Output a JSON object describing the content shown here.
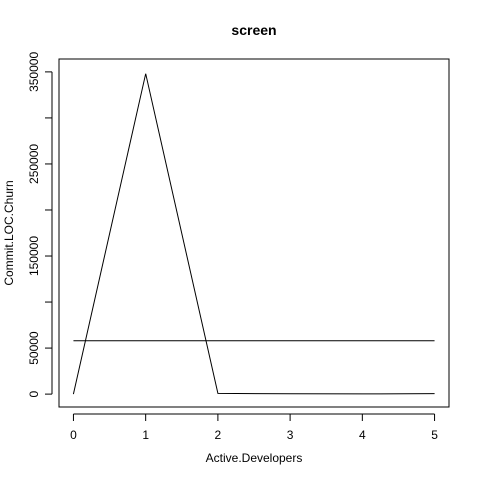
{
  "chart_data": {
    "type": "line",
    "title": "screen",
    "xlabel": "Active.Developers",
    "ylabel": "Commit.LOC.Churn",
    "x": [
      0,
      1,
      2,
      3,
      4,
      5
    ],
    "series": [
      {
        "values": [
          0,
          348000,
          800,
          300,
          200,
          600
        ]
      }
    ],
    "reference_line": {
      "y": 58000
    },
    "xlim": [
      -0.2,
      5.2
    ],
    "ylim": [
      -14000,
      364000
    ],
    "xticks": [
      0,
      1,
      2,
      3,
      4,
      5
    ],
    "xtick_labels": [
      "0",
      "1",
      "2",
      "3",
      "4",
      "5"
    ],
    "yticks": [
      0,
      50000,
      100000,
      150000,
      200000,
      250000,
      300000,
      350000
    ],
    "ytick_labels": [
      "0",
      "50000",
      "",
      "150000",
      "",
      "250000",
      "",
      "350000"
    ],
    "grid": false,
    "legend": "none"
  }
}
